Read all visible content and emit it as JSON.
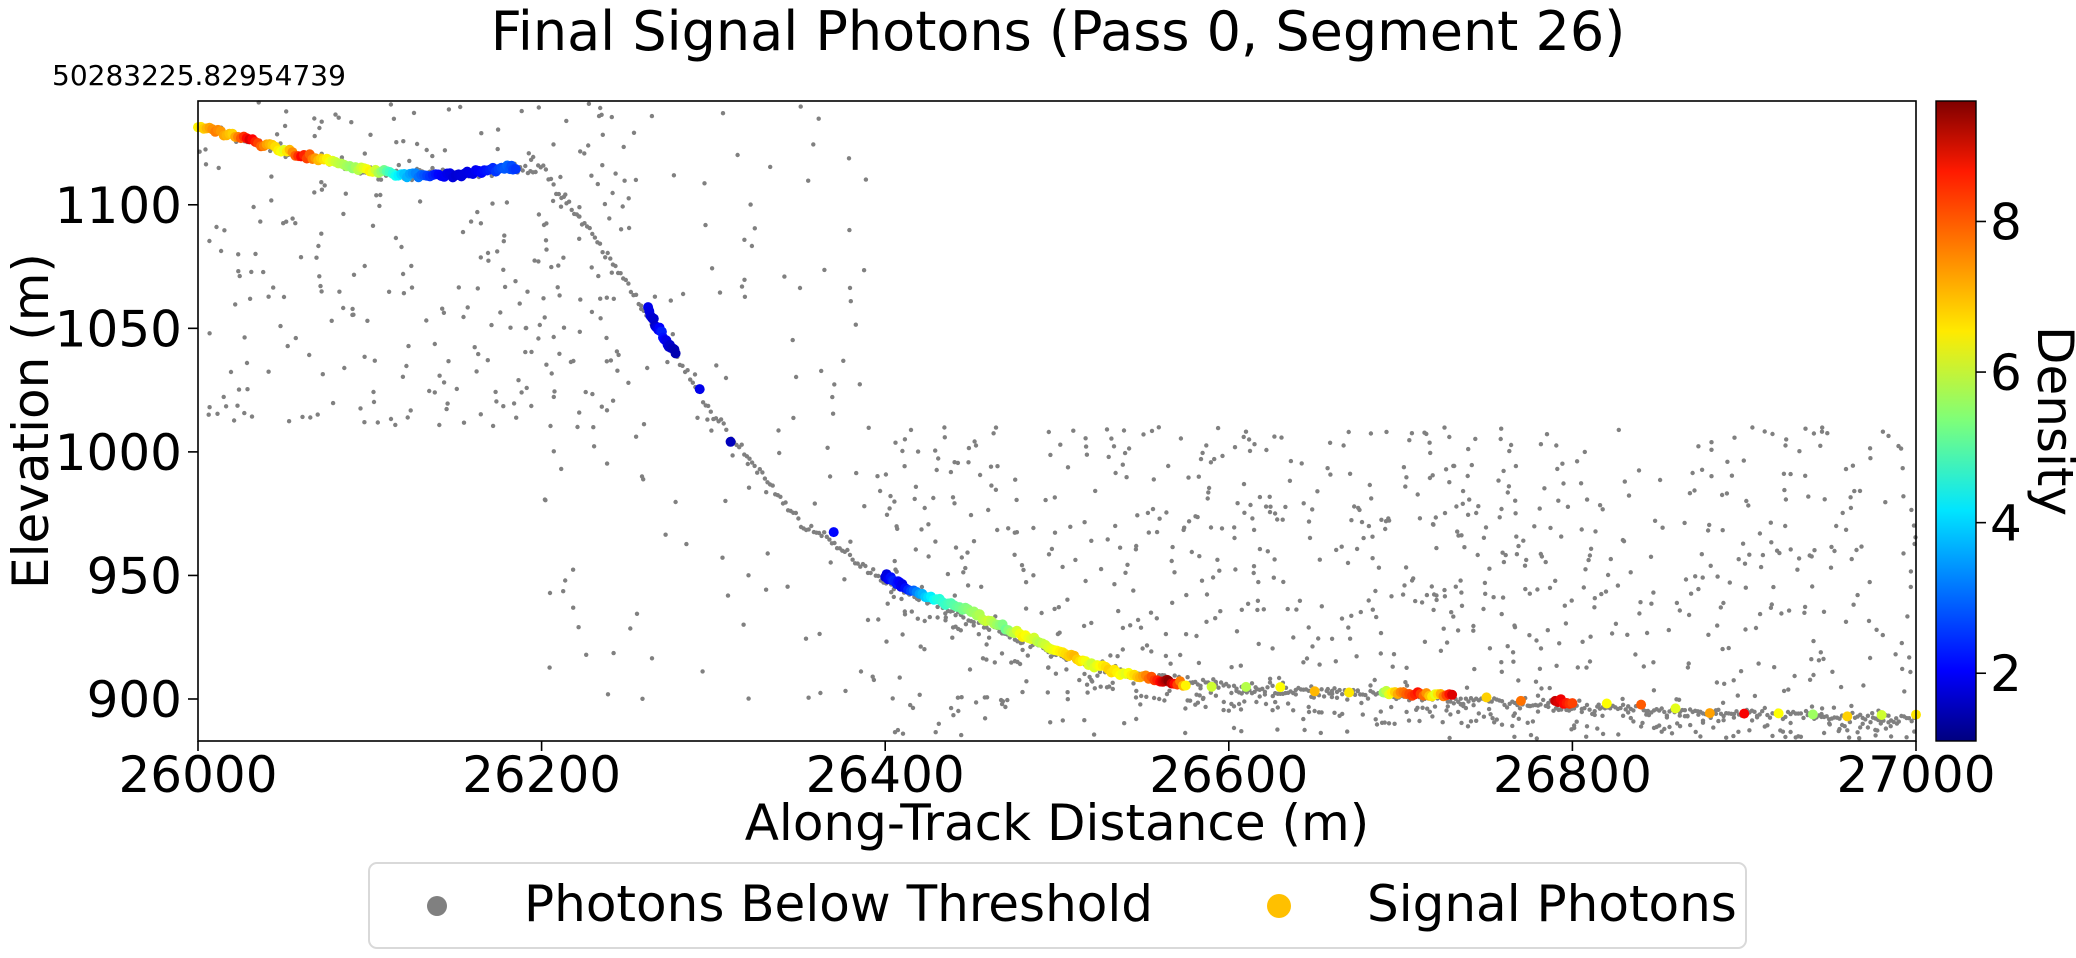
{
  "chart_data": {
    "type": "scatter",
    "title": "Final Signal Photons (Pass 0, Segment 26)",
    "offset_text": "50283225.82954739",
    "xlabel": "Along-Track Distance (m)",
    "ylabel": "Elevation (m)",
    "xlim": [
      26000,
      27000
    ],
    "ylim": [
      883,
      1142
    ],
    "xticks": [
      26000,
      26200,
      26400,
      26600,
      26800,
      27000
    ],
    "xtick_labels": [
      "26000",
      "26200",
      "26400",
      "26600",
      "26800",
      "27000"
    ],
    "yticks": [
      900,
      950,
      1000,
      1050,
      1100
    ],
    "ytick_labels": [
      "900",
      "950",
      "1000",
      "1050",
      "1100"
    ],
    "grid": false,
    "colorbar": {
      "label": "Density",
      "colormap": "jet",
      "range": [
        1.1,
        9.6
      ],
      "ticks": [
        2,
        4,
        6,
        8
      ],
      "tick_labels": [
        "2",
        "4",
        "6",
        "8"
      ]
    },
    "legend": {
      "placement": "bottom-center",
      "entries": [
        {
          "label": "Photons Below Threshold",
          "color": "#808080"
        },
        {
          "label": "Signal Photons",
          "color": "#ffc000"
        }
      ]
    },
    "surface_profile": [
      [
        26000,
        1132
      ],
      [
        26050,
        1122
      ],
      [
        26100,
        1113
      ],
      [
        26150,
        1112
      ],
      [
        26200,
        1115
      ],
      [
        26250,
        1068
      ],
      [
        26300,
        1015
      ],
      [
        26350,
        972
      ],
      [
        26400,
        948
      ],
      [
        26450,
        932
      ],
      [
        26500,
        918
      ],
      [
        26550,
        909
      ],
      [
        26600,
        905
      ],
      [
        26700,
        901
      ],
      [
        26800,
        897
      ],
      [
        26900,
        894
      ],
      [
        27000,
        892
      ]
    ],
    "series": [
      {
        "name": "Signal Photons",
        "points": [
          [
            26000,
            1132,
            6.5
          ],
          [
            26010,
            1130,
            7.5
          ],
          [
            26020,
            1128,
            6.8
          ],
          [
            26030,
            1126,
            8.8
          ],
          [
            26040,
            1124,
            7.2
          ],
          [
            26050,
            1122,
            6.2
          ],
          [
            26060,
            1120,
            8.5
          ],
          [
            26070,
            1119,
            7.0
          ],
          [
            26080,
            1117,
            6.0
          ],
          [
            26090,
            1115,
            5.5
          ],
          [
            26100,
            1114,
            6.5
          ],
          [
            26110,
            1113,
            5.0
          ],
          [
            26120,
            1112,
            3.8
          ],
          [
            26130,
            1112,
            3.0
          ],
          [
            26140,
            1112,
            2.2
          ],
          [
            26150,
            1112,
            1.8
          ],
          [
            26160,
            1113,
            2.0
          ],
          [
            26170,
            1114,
            2.4
          ],
          [
            26180,
            1115,
            3.0
          ],
          [
            26185,
            1115,
            2.6
          ],
          [
            26262,
            1058,
            2.0
          ],
          [
            26266,
            1052,
            1.7
          ],
          [
            26270,
            1048,
            2.4
          ],
          [
            26274,
            1043,
            1.8
          ],
          [
            26278,
            1040,
            1.5
          ],
          [
            26292,
            1025,
            2.0
          ],
          [
            26310,
            1005,
            1.6
          ],
          [
            26370,
            967,
            2.2
          ],
          [
            26400,
            950,
            1.8
          ],
          [
            26405,
            948,
            2.5
          ],
          [
            26410,
            946,
            2.0
          ],
          [
            26420,
            943,
            3.5
          ],
          [
            26430,
            940,
            4.5
          ],
          [
            26440,
            938,
            5.0
          ],
          [
            26450,
            935,
            5.5
          ],
          [
            26460,
            932,
            6.0
          ],
          [
            26470,
            929,
            5.2
          ],
          [
            26480,
            926,
            6.5
          ],
          [
            26490,
            923,
            5.8
          ],
          [
            26500,
            920,
            6.4
          ],
          [
            26510,
            917,
            7.0
          ],
          [
            26520,
            914,
            6.0
          ],
          [
            26530,
            912,
            6.8
          ],
          [
            26540,
            910,
            6.2
          ],
          [
            26550,
            909,
            7.2
          ],
          [
            26560,
            908,
            8.5
          ],
          [
            26565,
            907,
            9.5
          ],
          [
            26575,
            906,
            6.5
          ],
          [
            26590,
            905,
            6.0
          ],
          [
            26610,
            905,
            5.8
          ],
          [
            26630,
            904,
            6.4
          ],
          [
            26650,
            904,
            7.0
          ],
          [
            26670,
            903,
            6.6
          ],
          [
            26690,
            903,
            5.6
          ],
          [
            26700,
            902,
            7.4
          ],
          [
            26710,
            902,
            8.4
          ],
          [
            26720,
            902,
            6.2
          ],
          [
            26730,
            901,
            8.8
          ],
          [
            26750,
            901,
            6.8
          ],
          [
            26770,
            900,
            7.6
          ],
          [
            26790,
            899,
            9.0
          ],
          [
            26800,
            899,
            8.0
          ],
          [
            26820,
            898,
            6.4
          ],
          [
            26840,
            897,
            7.8
          ],
          [
            26860,
            896,
            6.2
          ],
          [
            26880,
            895,
            7.2
          ],
          [
            26900,
            895,
            8.6
          ],
          [
            26920,
            894,
            6.4
          ],
          [
            26940,
            894,
            5.6
          ],
          [
            26960,
            893,
            6.8
          ],
          [
            26980,
            893,
            6.0
          ],
          [
            27000,
            893,
            6.6
          ]
        ]
      }
    ]
  }
}
